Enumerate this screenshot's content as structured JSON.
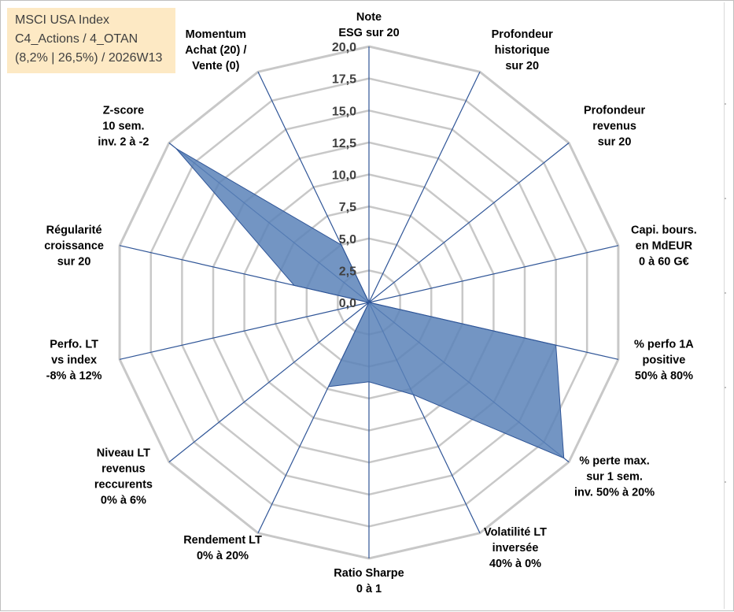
{
  "info_box": {
    "line1": "MSCI USA Index",
    "line2": "C4_Actions / 4_OTAN",
    "line3": "(8,2% | 26,5%) / 2026W13"
  },
  "colors": {
    "grid": "#c8c8c8",
    "spoke": "#2f5597",
    "series_fill": "#5b82b8",
    "series_stroke": "#2f5597",
    "info_bg": "#fde9c4",
    "text": "#000000"
  },
  "chart_data": {
    "type": "radar",
    "title": "",
    "range": [
      0,
      20
    ],
    "tick_step": 2.5,
    "tick_labels": [
      "0,0",
      "2,5",
      "5,0",
      "7,5",
      "10,0",
      "12,5",
      "15,0",
      "17,5",
      "20,0"
    ],
    "grid": true,
    "axes": [
      {
        "label": [
          "Note",
          "ESG sur 20"
        ]
      },
      {
        "label": [
          "Profondeur",
          "historique",
          "sur 20"
        ]
      },
      {
        "label": [
          "Profondeur",
          "revenus",
          "sur 20"
        ]
      },
      {
        "label": [
          "Capi. bours.",
          "en MdEUR",
          "0 à 60 G€"
        ]
      },
      {
        "label": [
          "% perfo 1A",
          "positive",
          "50% à 80%"
        ]
      },
      {
        "label": [
          "% perte max.",
          "sur 1 sem.",
          "inv. 50% à 20%"
        ]
      },
      {
        "label": [
          "Volatilité LT",
          "inversée",
          "40% à 0%"
        ]
      },
      {
        "label": [
          "Ratio Sharpe",
          "0 à 1"
        ]
      },
      {
        "label": [
          "Rendement LT",
          "0% à 20%"
        ]
      },
      {
        "label": [
          "Niveau LT",
          "revenus",
          "reccurents",
          "0% à 6%"
        ]
      },
      {
        "label": [
          "Perfo. LT",
          "vs index",
          "-8% à 12%"
        ]
      },
      {
        "label": [
          "Régularité",
          "croissance",
          "sur 20"
        ]
      },
      {
        "label": [
          "Z-score",
          "10 sem.",
          "inv. 2 à -2"
        ]
      },
      {
        "label": [
          "Momentum",
          "Achat (20) /",
          "Vente (0)"
        ]
      }
    ],
    "series": [
      {
        "name": "MSCI USA Index",
        "values": [
          0,
          0,
          0,
          0,
          15.0,
          19.5,
          8.0,
          6.2,
          7.3,
          0,
          0,
          6.0,
          19.3,
          5.0
        ]
      }
    ]
  }
}
